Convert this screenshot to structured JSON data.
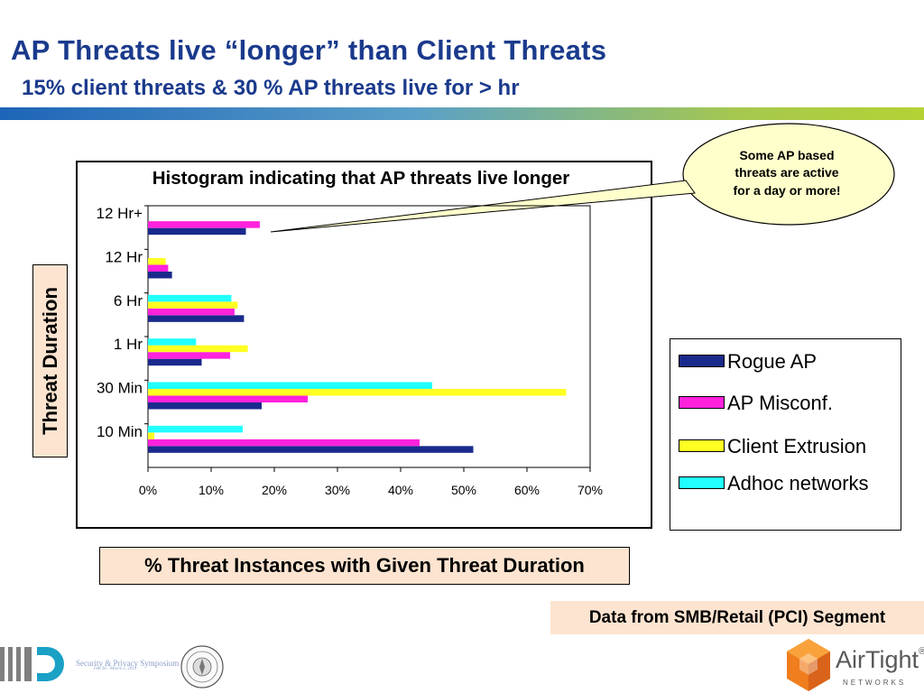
{
  "header": {
    "title": "AP Threats live “longer” than Client Threats",
    "subtitle": "15% client threats & 30 % AP threats live for > hr"
  },
  "callout": {
    "lines": [
      "Some AP based",
      "threats are active",
      "for a day or more!"
    ]
  },
  "axis_titles": {
    "y": "Threat Duration",
    "x": "% Threat Instances with Given Threat Duration"
  },
  "source_note": "Data from SMB/Retail (PCI) Segment",
  "footer": {
    "symposium": "Security & Privacy Symposium",
    "dates": "Feb 28 - March 2, 2013"
  },
  "brand": {
    "name": "AirTight",
    "registered": "®",
    "tagline": "NETWORKS"
  },
  "colors": {
    "title": "#1a3a8c",
    "rogue_ap": "#1a2a8c",
    "ap_misconf": "#ff22dd",
    "client_extrusion": "#ffff22",
    "adhoc_networks": "#22ffff",
    "label_box": "#fde4d0",
    "callout_fill": "#ffffcc"
  },
  "chart_data": {
    "type": "bar",
    "orientation": "horizontal",
    "title": "Histogram indicating that AP threats live longer",
    "xlabel": "% Threat Instances with Given Threat Duration",
    "ylabel": "Threat Duration",
    "categories": [
      "12 Hr+",
      "12 Hr",
      "6 Hr",
      "1 Hr",
      "30 Min",
      "10 Min"
    ],
    "series": [
      {
        "name": "Rogue AP",
        "color": "#1a2a8c",
        "values": [
          15.5,
          3.8,
          15.2,
          8.5,
          18,
          51.5
        ]
      },
      {
        "name": "AP Misconf.",
        "color": "#ff22dd",
        "values": [
          17.7,
          3.2,
          13.7,
          13,
          25.3,
          43
        ]
      },
      {
        "name": "Client Extrusion",
        "color": "#ffff22",
        "values": [
          0,
          2.8,
          14.2,
          15.8,
          66.2,
          1
        ]
      },
      {
        "name": "Adhoc networks",
        "color": "#22ffff",
        "values": [
          0,
          0,
          13.2,
          7.6,
          45,
          15
        ]
      }
    ],
    "xlim": [
      0,
      70
    ],
    "xticks": [
      "0%",
      "10%",
      "20%",
      "30%",
      "40%",
      "50%",
      "60%",
      "70%"
    ],
    "grid": false,
    "legend": "right"
  }
}
